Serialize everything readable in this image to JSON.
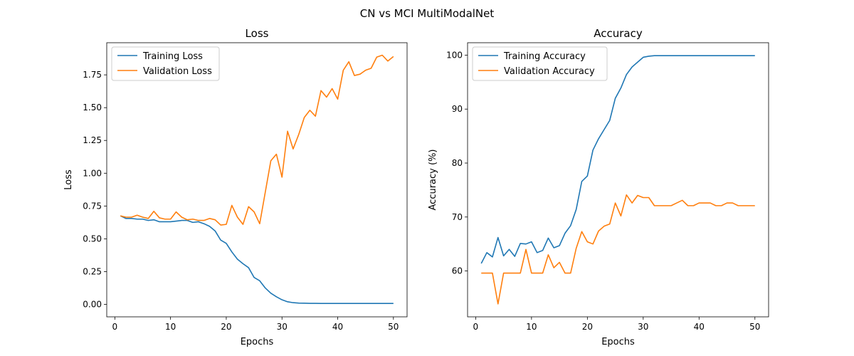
{
  "suptitle": "CN vs MCI MultiModalNet",
  "colors": {
    "training": "#1f77b4",
    "validation": "#ff7f0e"
  },
  "chart_data": [
    {
      "type": "line",
      "title": "Loss",
      "xlabel": "Epochs",
      "ylabel": "Loss",
      "xlim": [
        -1.45,
        52.45
      ],
      "ylim": [
        -0.095,
        1.995
      ],
      "xticks": [
        0,
        10,
        20,
        30,
        40,
        50
      ],
      "yticks": [
        0.0,
        0.25,
        0.5,
        0.75,
        1.0,
        1.25,
        1.5,
        1.75
      ],
      "ytick_labels": [
        "0.00",
        "0.25",
        "0.50",
        "0.75",
        "1.00",
        "1.25",
        "1.50",
        "1.75"
      ],
      "legend_position": "upper-left",
      "x": [
        1,
        2,
        3,
        4,
        5,
        6,
        7,
        8,
        9,
        10,
        11,
        12,
        13,
        14,
        15,
        16,
        17,
        18,
        19,
        20,
        21,
        22,
        23,
        24,
        25,
        26,
        27,
        28,
        29,
        30,
        31,
        32,
        33,
        34,
        35,
        36,
        37,
        38,
        39,
        40,
        41,
        42,
        43,
        44,
        45,
        46,
        47,
        48,
        49,
        50
      ],
      "series": [
        {
          "name": "Training Loss",
          "values": [
            0.675,
            0.655,
            0.655,
            0.65,
            0.65,
            0.64,
            0.645,
            0.63,
            0.63,
            0.63,
            0.635,
            0.64,
            0.64,
            0.625,
            0.63,
            0.615,
            0.595,
            0.56,
            0.49,
            0.465,
            0.4,
            0.345,
            0.31,
            0.28,
            0.205,
            0.18,
            0.125,
            0.085,
            0.058,
            0.035,
            0.02,
            0.013,
            0.01,
            0.009,
            0.008,
            0.008,
            0.007,
            0.007,
            0.007,
            0.007,
            0.007,
            0.007,
            0.007,
            0.007,
            0.007,
            0.007,
            0.007,
            0.007,
            0.007,
            0.007
          ]
        },
        {
          "name": "Validation Loss",
          "values": [
            0.675,
            0.665,
            0.665,
            0.68,
            0.665,
            0.655,
            0.71,
            0.66,
            0.65,
            0.65,
            0.705,
            0.665,
            0.645,
            0.65,
            0.64,
            0.64,
            0.655,
            0.645,
            0.605,
            0.61,
            0.755,
            0.665,
            0.61,
            0.745,
            0.705,
            0.615,
            0.855,
            1.095,
            1.145,
            0.97,
            1.32,
            1.185,
            1.295,
            1.425,
            1.48,
            1.435,
            1.63,
            1.58,
            1.645,
            1.565,
            1.785,
            1.85,
            1.745,
            1.755,
            1.785,
            1.8,
            1.885,
            1.9,
            1.855,
            1.89
          ]
        }
      ]
    },
    {
      "type": "line",
      "title": "Accuracy",
      "xlabel": "Epochs",
      "ylabel": "Accuracy (%)",
      "xlim": [
        -1.45,
        52.45
      ],
      "ylim": [
        51.5,
        102.3
      ],
      "xticks": [
        0,
        10,
        20,
        30,
        40,
        50
      ],
      "yticks": [
        60,
        70,
        80,
        90,
        100
      ],
      "ytick_labels": [
        "60",
        "70",
        "80",
        "90",
        "100"
      ],
      "legend_position": "upper-left",
      "x": [
        1,
        2,
        3,
        4,
        5,
        6,
        7,
        8,
        9,
        10,
        11,
        12,
        13,
        14,
        15,
        16,
        17,
        18,
        19,
        20,
        21,
        22,
        23,
        24,
        25,
        26,
        27,
        28,
        29,
        30,
        31,
        32,
        33,
        34,
        35,
        36,
        37,
        38,
        39,
        40,
        41,
        42,
        43,
        44,
        45,
        46,
        47,
        48,
        49,
        50
      ],
      "series": [
        {
          "name": "Training Accuracy",
          "values": [
            61.4,
            63.4,
            62.6,
            66.2,
            62.8,
            64.0,
            62.7,
            65.1,
            65.0,
            65.4,
            63.4,
            63.8,
            66.1,
            64.3,
            64.7,
            67.0,
            68.4,
            71.4,
            76.6,
            77.6,
            82.4,
            84.5,
            86.2,
            87.9,
            92.0,
            93.9,
            96.4,
            97.8,
            98.7,
            99.6,
            99.8,
            99.9,
            99.9,
            99.9,
            99.9,
            99.9,
            99.9,
            99.9,
            99.9,
            99.9,
            99.9,
            99.9,
            99.9,
            99.9,
            99.9,
            99.9,
            99.9,
            99.9,
            99.9,
            99.9
          ]
        },
        {
          "name": "Validation Accuracy",
          "values": [
            59.6,
            59.6,
            59.6,
            53.9,
            59.6,
            59.6,
            59.6,
            59.6,
            64.0,
            59.6,
            59.6,
            59.6,
            63.0,
            60.6,
            61.6,
            59.6,
            59.6,
            64.2,
            67.3,
            65.4,
            65.0,
            67.4,
            68.3,
            68.7,
            72.6,
            70.2,
            74.1,
            72.6,
            74.0,
            73.6,
            73.6,
            72.1,
            72.1,
            72.1,
            72.1,
            72.6,
            73.1,
            72.1,
            72.1,
            72.6,
            72.6,
            72.6,
            72.1,
            72.1,
            72.6,
            72.6,
            72.1,
            72.1,
            72.1,
            72.1
          ]
        }
      ]
    }
  ]
}
